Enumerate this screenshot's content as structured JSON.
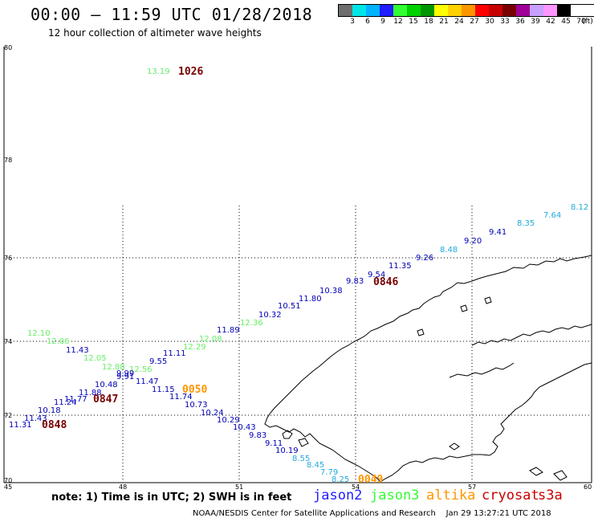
{
  "header": {
    "title": "00:00 — 11:59 UTC 01/28/2018",
    "subtitle": "12 hour collection of altimeter wave heights"
  },
  "colorbar": {
    "colors": [
      "#6e6e6e",
      "#00e6e6",
      "#00b4ff",
      "#1e1eff",
      "#32ff32",
      "#00d200",
      "#009600",
      "#ffff00",
      "#ffd200",
      "#ff9600",
      "#ff0000",
      "#c80000",
      "#780000",
      "#a00096",
      "#c8a0ff",
      "#ff96ff",
      "#000000"
    ],
    "labels": [
      "3",
      "6",
      "9",
      "12",
      "15",
      "18",
      "21",
      "24",
      "27",
      "30",
      "33",
      "36",
      "39",
      "42",
      "45",
      "70",
      "(ft)"
    ]
  },
  "map": {
    "lon_ticks": [
      "45",
      "48",
      "51",
      "54",
      "57",
      "60"
    ],
    "lat_ticks": [
      "80",
      "78",
      "76",
      "74",
      "72",
      "70"
    ],
    "colors": {
      "jason2": "#1e1eff",
      "jason3": "#32ff32",
      "altika": "#ff9600",
      "cryosat": "#c80000",
      "light_green": "#66ee66",
      "light_cyan": "#22aadd",
      "dark_blue": "#0000b4",
      "time_red": "#780000",
      "coast": "#000000"
    },
    "swh": [
      {
        "text": "13.19",
        "c": "light_green"
      },
      {
        "text": "12.10",
        "c": "light_green"
      },
      {
        "text": "12.06",
        "c": "light_green"
      },
      {
        "text": "11.43",
        "c": "dark_blue"
      },
      {
        "text": "12.05",
        "c": "light_green"
      },
      {
        "text": "12.88",
        "c": "light_green"
      },
      {
        "text": "12.56",
        "c": "light_green"
      },
      {
        "text": "9.99",
        "c": "dark_blue"
      },
      {
        "text": "9.91",
        "c": "dark_blue"
      },
      {
        "text": "10.48",
        "c": "dark_blue"
      },
      {
        "text": "11.88",
        "c": "dark_blue"
      },
      {
        "text": "11.77",
        "c": "dark_blue"
      },
      {
        "text": "11.24",
        "c": "dark_blue"
      },
      {
        "text": "10.18",
        "c": "dark_blue"
      },
      {
        "text": "11.43",
        "c": "dark_blue"
      },
      {
        "text": "11.31",
        "c": "dark_blue"
      },
      {
        "text": "11.47",
        "c": "dark_blue"
      },
      {
        "text": "11.15",
        "c": "dark_blue"
      },
      {
        "text": "11.74",
        "c": "dark_blue"
      },
      {
        "text": "10.73",
        "c": "dark_blue"
      },
      {
        "text": "10.24",
        "c": "dark_blue"
      },
      {
        "text": "10.29",
        "c": "dark_blue"
      },
      {
        "text": "10.43",
        "c": "dark_blue"
      },
      {
        "text": "9.83",
        "c": "dark_blue"
      },
      {
        "text": "9.11",
        "c": "dark_blue"
      },
      {
        "text": "10.19",
        "c": "dark_blue"
      },
      {
        "text": "8.55",
        "c": "light_cyan"
      },
      {
        "text": "8.45",
        "c": "light_cyan"
      },
      {
        "text": "7.79",
        "c": "light_cyan"
      },
      {
        "text": "8.25",
        "c": "light_cyan"
      },
      {
        "text": "9.55",
        "c": "dark_blue"
      },
      {
        "text": "11.11",
        "c": "dark_blue"
      },
      {
        "text": "12.29",
        "c": "light_green"
      },
      {
        "text": "12.08",
        "c": "light_green"
      },
      {
        "text": "11.89",
        "c": "dark_blue"
      },
      {
        "text": "12.36",
        "c": "light_green"
      },
      {
        "text": "10.32",
        "c": "dark_blue"
      },
      {
        "text": "10.51",
        "c": "dark_blue"
      },
      {
        "text": "11.80",
        "c": "dark_blue"
      },
      {
        "text": "10.38",
        "c": "dark_blue"
      },
      {
        "text": "9.83",
        "c": "dark_blue"
      },
      {
        "text": "9.54",
        "c": "dark_blue"
      },
      {
        "text": "11.35",
        "c": "dark_blue"
      },
      {
        "text": "9.26",
        "c": "dark_blue"
      },
      {
        "text": "8.48",
        "c": "light_cyan"
      },
      {
        "text": "9.20",
        "c": "dark_blue"
      },
      {
        "text": "9.41",
        "c": "dark_blue"
      },
      {
        "text": "8.35",
        "c": "light_cyan"
      },
      {
        "text": "7.64",
        "c": "light_cyan"
      },
      {
        "text": "8.12",
        "c": "light_cyan"
      }
    ],
    "times": [
      {
        "text": "1026",
        "c": "time_red"
      },
      {
        "text": "0846",
        "c": "time_red"
      },
      {
        "text": "0050",
        "c": "altika"
      },
      {
        "text": "0847",
        "c": "time_red"
      },
      {
        "text": "0848",
        "c": "time_red"
      },
      {
        "text": "0049",
        "c": "altika"
      }
    ]
  },
  "footer": {
    "note": "note: 1) Time is in UTC; 2) SWH is in feet",
    "legend": [
      {
        "text": "jason2",
        "c": "jason2"
      },
      {
        "text": "jason3",
        "c": "jason3"
      },
      {
        "text": "altika",
        "c": "altika"
      },
      {
        "text": "cryosat",
        "c": "cryosat"
      },
      {
        "text": "s3a",
        "c": "cryosat"
      }
    ],
    "credit": "NOAA/NESDIS Center for Satellite Applications and Research    Jan 29 13:27:21 UTC 2018"
  }
}
